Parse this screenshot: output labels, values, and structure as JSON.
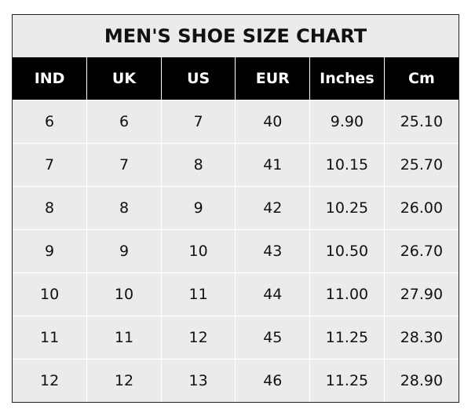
{
  "title": "MEN'S SHOE SIZE CHART",
  "colors": {
    "header_bg": "#000000",
    "header_text": "#ffffff",
    "cell_bg": "#ebebeb",
    "grid": "#ffffff"
  },
  "columns": [
    "IND",
    "UK",
    "US",
    "EUR",
    "Inches",
    "Cm"
  ],
  "rows": [
    [
      "6",
      "6",
      "7",
      "40",
      "9.90",
      "25.10"
    ],
    [
      "7",
      "7",
      "8",
      "41",
      "10.15",
      "25.70"
    ],
    [
      "8",
      "8",
      "9",
      "42",
      "10.25",
      "26.00"
    ],
    [
      "9",
      "9",
      "10",
      "43",
      "10.50",
      "26.70"
    ],
    [
      "10",
      "10",
      "11",
      "44",
      "11.00",
      "27.90"
    ],
    [
      "11",
      "11",
      "12",
      "45",
      "11.25",
      "28.30"
    ],
    [
      "12",
      "12",
      "13",
      "46",
      "11.25",
      "28.90"
    ]
  ]
}
